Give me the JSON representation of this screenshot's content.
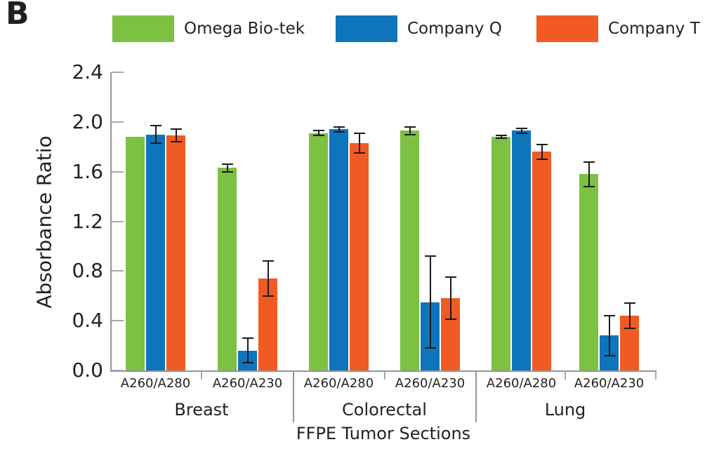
{
  "panel_label": "B",
  "legend": {
    "items": [
      {
        "label": "Omega Bio-tek",
        "color": "#7CC142"
      },
      {
        "label": "Company Q",
        "color": "#0E75BC"
      },
      {
        "label": "Company T",
        "color": "#F15A22"
      }
    ]
  },
  "chart_data": {
    "type": "bar",
    "variant": "grouped-with-error-bars",
    "title": "",
    "ylabel": "Absorbance Ratio",
    "xlabel": "FFPE Tumor Sections",
    "ylim": [
      0.0,
      2.4
    ],
    "yticks": [
      0.0,
      0.4,
      0.8,
      1.2,
      1.6,
      2.0,
      2.4
    ],
    "yticklabels": [
      "0.0",
      "0.4",
      "0.8",
      "1.2",
      "1.6",
      "2.0",
      "2.4"
    ],
    "grid": false,
    "legend_position": "top",
    "series_names": [
      "Omega Bio-tek",
      "Company Q",
      "Company T"
    ],
    "series_colors": [
      "#7CC142",
      "#0E75BC",
      "#F15A22"
    ],
    "error_bar_color": "#1a1a1a",
    "groups": [
      {
        "label": "Breast",
        "subgroups": [
          {
            "label": "A260/A280",
            "values": [
              1.88,
              1.9,
              1.89
            ],
            "errors": [
              0,
              0.07,
              0.05
            ]
          },
          {
            "label": "A260/A230",
            "values": [
              1.63,
              0.16,
              0.74
            ],
            "errors": [
              0.03,
              0.1,
              0.14
            ]
          }
        ]
      },
      {
        "label": "Colorectal",
        "subgroups": [
          {
            "label": "A260/A280",
            "values": [
              1.91,
              1.94,
              1.83
            ],
            "errors": [
              0.02,
              0.02,
              0.08
            ]
          },
          {
            "label": "A260/A230",
            "values": [
              1.93,
              0.55,
              0.58
            ],
            "errors": [
              0.03,
              0.37,
              0.17
            ]
          }
        ]
      },
      {
        "label": "Lung",
        "subgroups": [
          {
            "label": "A260/A280",
            "values": [
              1.88,
              1.93,
              1.76
            ],
            "errors": [
              0.01,
              0.02,
              0.06
            ]
          },
          {
            "label": "A260/A230",
            "values": [
              1.58,
              0.28,
              0.44
            ],
            "errors": [
              0.1,
              0.16,
              0.1
            ]
          }
        ]
      }
    ]
  }
}
